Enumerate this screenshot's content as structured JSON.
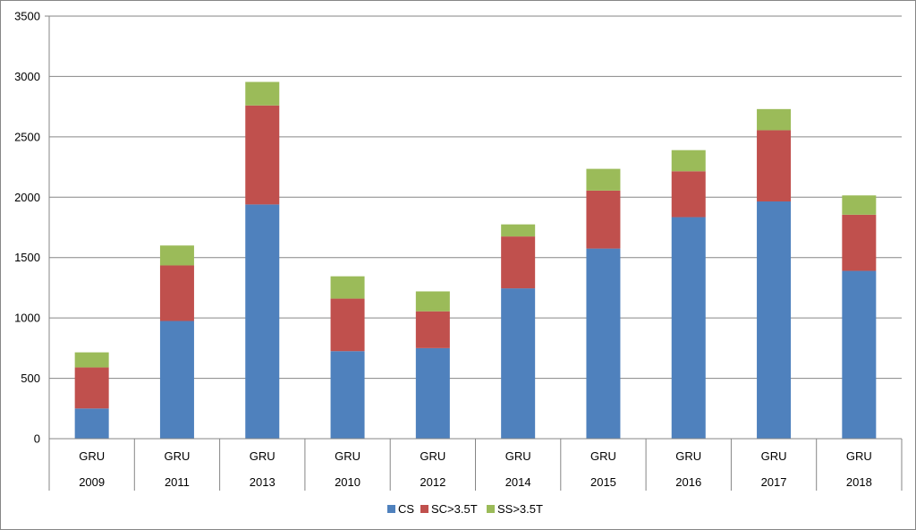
{
  "chart_data": {
    "type": "bar",
    "stacked": true,
    "title": "",
    "xlabel": "",
    "ylabel": "",
    "ylim": [
      0,
      3500
    ],
    "yticks": [
      0,
      500,
      1000,
      1500,
      2000,
      2500,
      3000,
      3500
    ],
    "grid": "horizontal",
    "legend_position": "bottom",
    "categories_level1": [
      "GRU",
      "GRU",
      "GRU",
      "GRU",
      "GRU",
      "GRU",
      "GRU",
      "GRU",
      "GRU",
      "GRU"
    ],
    "categories_level2": [
      "2009",
      "2011",
      "2013",
      "2010",
      "2012",
      "2014",
      "2015",
      "2016",
      "2017",
      "2018"
    ],
    "series": [
      {
        "name": "CS",
        "color": "#4F81BD",
        "values": [
          250,
          975,
          1940,
          725,
          750,
          1245,
          1575,
          1835,
          1965,
          1390
        ]
      },
      {
        "name": "SC>3.5T",
        "color": "#C0504D",
        "values": [
          340,
          460,
          820,
          435,
          305,
          430,
          480,
          380,
          590,
          465
        ]
      },
      {
        "name": "SS>3.5T",
        "color": "#9BBB59",
        "values": [
          125,
          165,
          195,
          185,
          165,
          100,
          180,
          175,
          175,
          160
        ]
      }
    ]
  }
}
